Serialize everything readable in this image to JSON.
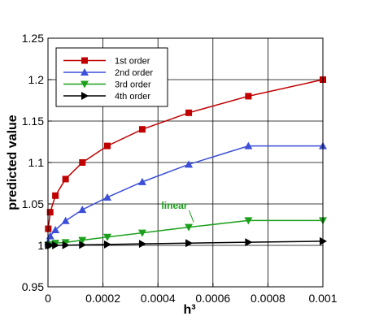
{
  "chart_data": {
    "type": "line",
    "xlabel": "h³",
    "ylabel": "predicted value",
    "xlim": [
      0,
      0.001
    ],
    "ylim": [
      0.95,
      1.25
    ],
    "x_ticks": [
      0,
      0.0002,
      0.0004,
      0.0006,
      0.0008,
      0.001
    ],
    "x_tick_labels": [
      "0",
      "0.0002",
      "0.0004",
      "0.0006",
      "0.0008",
      "0.001"
    ],
    "y_ticks": [
      0.95,
      1.0,
      1.05,
      1.1,
      1.15,
      1.2,
      1.25
    ],
    "y_tick_labels": [
      "0.95",
      "1",
      "1.05",
      "1.1",
      "1.15",
      "1.2",
      "1.25"
    ],
    "grid": true,
    "legend_position": "top-left",
    "annotation": {
      "text": "linear",
      "color": "#1ca01c",
      "at_x": 0.00053,
      "at_y": 1.028,
      "text_x": 0.00046,
      "text_y": 1.044
    },
    "x": [
      1e-06,
      8e-06,
      2.7e-05,
      6.4e-05,
      0.000125,
      0.000216,
      0.000343,
      0.000512,
      0.000729,
      0.001
    ],
    "series": [
      {
        "name": "1st order",
        "color": "#c00000",
        "marker": "square",
        "values": [
          1.02,
          1.04,
          1.06,
          1.08,
          1.1,
          1.12,
          1.14,
          1.16,
          1.18,
          1.2
        ]
      },
      {
        "name": "2nd order",
        "color": "#3b4fd8",
        "marker": "triangle-up",
        "values": [
          1.004,
          1.0113,
          1.0186,
          1.0297,
          1.043,
          1.058,
          1.0766,
          1.0977,
          1.12,
          1.12
        ]
      },
      {
        "name": "3rd order",
        "color": "#1ca01c",
        "marker": "triangle-down",
        "values": [
          1.0001,
          1.0008,
          1.0027,
          1.0036,
          1.0063,
          1.01,
          1.0151,
          1.0219,
          1.03,
          1.03
        ]
      },
      {
        "name": "4th order",
        "color": "#000000",
        "marker": "triangle-right",
        "values": [
          1.0,
          1.0,
          1.0001,
          1.0003,
          1.0006,
          1.0011,
          1.0018,
          1.0027,
          1.0038,
          1.005
        ]
      }
    ]
  }
}
